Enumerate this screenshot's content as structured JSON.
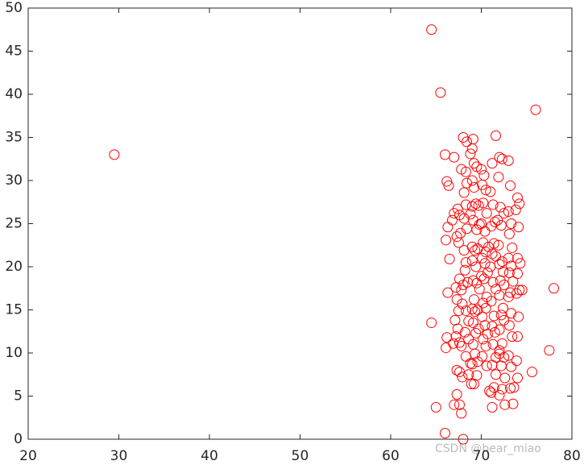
{
  "chart_data": {
    "type": "scatter",
    "color": "#ff0000",
    "marker": "circle",
    "xlim": [
      20,
      80
    ],
    "ylim": [
      0,
      50
    ],
    "xticks": [
      20,
      30,
      40,
      50,
      60,
      70,
      80
    ],
    "yticks": [
      0,
      5,
      10,
      15,
      20,
      25,
      30,
      35,
      40,
      45,
      50
    ],
    "watermark": "CSDN @bear_miao",
    "x": [
      29.5,
      64.5,
      65.5,
      76,
      78,
      77.5,
      64.5,
      65,
      66,
      68,
      66,
      67,
      66.2,
      66.4,
      66.3,
      66.1,
      66.5,
      66.3,
      66.2,
      66.1,
      66.8,
      67.0,
      67.4,
      67.6,
      67.3,
      67.5,
      67.7,
      67.2,
      67.6,
      67.8,
      67.3,
      67.5,
      67.9,
      67.1,
      67.4,
      67.6,
      67.8,
      66.9,
      67.2,
      67.3,
      67.6,
      67.9,
      67.3,
      67.0,
      67.6,
      67.8,
      68.0,
      68.4,
      68.3,
      67.8,
      68.4,
      68.1,
      68.3,
      68.1,
      68.8,
      68.4,
      68.1,
      68.3,
      68.2,
      68.5,
      68.0,
      68.3,
      68.6,
      68.2,
      68.6,
      68.3,
      68.8,
      68.6,
      68.9,
      69.1,
      69.0,
      68.8,
      69.2,
      69.5,
      69.0,
      69.2,
      69.0,
      69.4,
      69.7,
      69.1,
      69.5,
      69.8,
      69.0,
      69.3,
      69.6,
      69.0,
      69.4,
      69.1,
      69.5,
      69.8,
      69.2,
      69.0,
      69.3,
      69.6,
      69.1,
      69.4,
      69.7,
      69.1,
      69.3,
      69.6,
      69.0,
      69.5,
      69.2,
      70.0,
      70.3,
      70.1,
      70.5,
      70.2,
      70.6,
      70.0,
      70.4,
      70.2,
      70.5,
      70.8,
      70.1,
      70.4,
      70.7,
      70.0,
      70.3,
      70.6,
      70.2,
      70.5,
      70.1,
      70.4,
      70.7,
      70.2,
      70.5,
      70.1,
      70.6,
      70.9,
      71.1,
      71.2,
      71.0,
      71.3,
      71.5,
      71.1,
      71.4,
      71.2,
      71.6,
      71.0,
      71.3,
      71.6,
      71.1,
      71.4,
      71.2,
      71.5,
      71.3,
      71.6,
      71.2,
      71.6,
      71.4,
      71.2,
      71.6,
      72.0,
      72.3,
      71.9,
      72.1,
      72.5,
      71.8,
      72.2,
      71.9,
      72.3,
      72.0,
      72.4,
      72.1,
      72.5,
      72.0,
      72.4,
      72.2,
      72.5,
      72.0,
      72.3,
      72.0,
      72.0,
      72.5,
      72.2,
      72.6,
      72.3,
      72.0,
      72.6,
      73.0,
      73.2,
      73.0,
      73.3,
      73.1,
      73.4,
      73.0,
      73.3,
      73.1,
      73.5,
      73.2,
      73.0,
      73.3,
      73.1,
      73.4,
      73.0,
      73.3,
      73.6,
      73.2,
      73.5,
      74.0,
      74.2,
      73.8,
      74.1,
      74.0,
      74.3,
      74.0,
      74.2,
      74.5,
      73.9,
      74.1,
      74.0,
      73.9,
      74.0,
      75.6
    ],
    "values": [
      33,
      47.5,
      40.2,
      38.2,
      17.5,
      10.3,
      13.5,
      3.7,
      0.7,
      0,
      33,
      32.7,
      29.9,
      29.4,
      24.6,
      23.1,
      20.9,
      17.0,
      11.8,
      10.6,
      25.4,
      26.2,
      26.7,
      26.0,
      23.5,
      22.8,
      23.9,
      17.6,
      18.6,
      17.3,
      16.2,
      14.9,
      15.7,
      13.8,
      12.8,
      11.2,
      10.8,
      11.1,
      11.9,
      8.0,
      7.8,
      7.2,
      5.2,
      4.0,
      4.0,
      3.0,
      35.0,
      34.5,
      31.0,
      31.3,
      29.7,
      28.6,
      27.2,
      25.6,
      26.1,
      24.4,
      21.9,
      20.5,
      19.6,
      18.2,
      17.9,
      14.9,
      13.7,
      12.4,
      11.6,
      9.6,
      8.8,
      7.5,
      6.4,
      34.8,
      33.7,
      33.1,
      32.0,
      31.6,
      30.0,
      29.2,
      27.0,
      27.3,
      27.1,
      25.4,
      24.3,
      24.9,
      22.3,
      21.9,
      22.1,
      20.7,
      20.0,
      18.4,
      18.1,
      17.4,
      16.2,
      15.1,
      14.8,
      15.0,
      13.5,
      12.3,
      12.8,
      11.0,
      9.9,
      9.0,
      8.7,
      7.4,
      6.4,
      31.3,
      30.6,
      29.5,
      28.9,
      27.4,
      26.2,
      25.0,
      24.1,
      22.8,
      21.7,
      22.3,
      21.0,
      20.4,
      19.3,
      18.9,
      18.6,
      16.5,
      15.8,
      15.2,
      14.2,
      13.2,
      12.2,
      11.6,
      10.8,
      9.6,
      8.5,
      5.6,
      5.4,
      32.0,
      28.7,
      27.2,
      25.2,
      24.7,
      22.7,
      21.5,
      21.2,
      20.0,
      18.2,
      17.4,
      16.0,
      14.3,
      13.1,
      12.4,
      11.0,
      9.5,
      8.6,
      7.5,
      6.0,
      3.7,
      35.2,
      32.7,
      32.5,
      30.4,
      26.9,
      26.2,
      25.4,
      24.8,
      22.5,
      20.6,
      20.3,
      19.4,
      18.4,
      17.9,
      16.7,
      15.2,
      14.4,
      13.8,
      12.7,
      11.1,
      10.3,
      9.9,
      9.5,
      8.5,
      7.1,
      5.8,
      5.1,
      4.0,
      32.3,
      29.4,
      26.4,
      25.0,
      23.8,
      22.2,
      21.0,
      20.1,
      19.3,
      18.3,
      17.0,
      16.5,
      14.6,
      13.2,
      11.9,
      9.7,
      8.4,
      6.0,
      5.9,
      4.1,
      28.0,
      27.3,
      26.6,
      24.6,
      21.0,
      20.4,
      19.2,
      17.3,
      17.3,
      16.9,
      14.2,
      11.9,
      9.1,
      7.1,
      7.8
    ]
  }
}
